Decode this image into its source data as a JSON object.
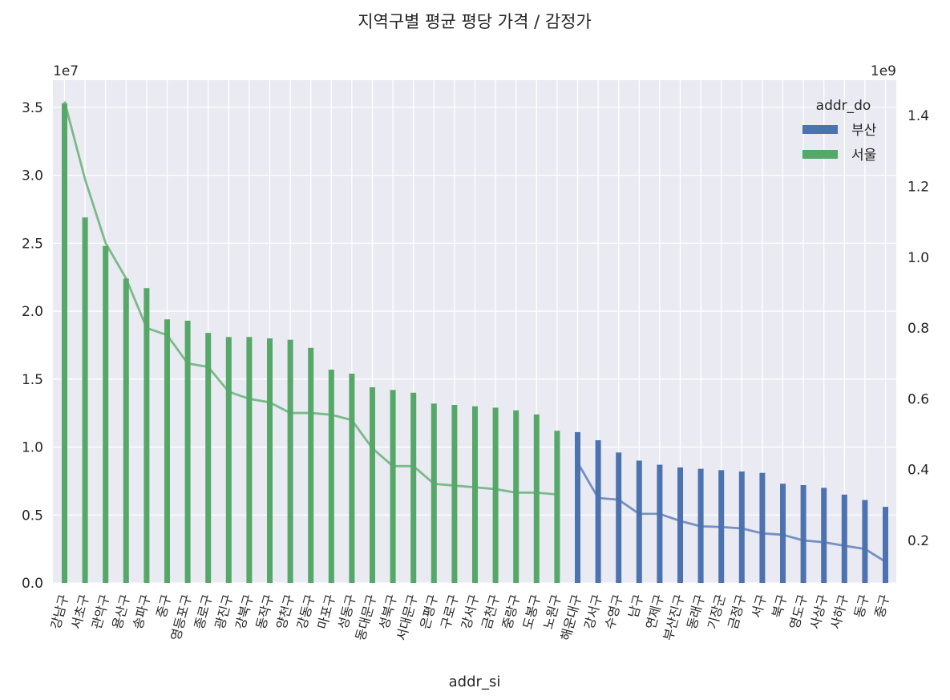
{
  "chart_data": {
    "type": "bar",
    "title": "지역구별 평균 평당 가격 / 감정가",
    "xlabel": "addr_si",
    "ylabel": "",
    "y_multiplier_label": "1e7",
    "y2_multiplier_label": "1e9",
    "ylim": [
      0,
      3.7
    ],
    "yticks": [
      "0.0",
      "0.5",
      "1.0",
      "1.5",
      "2.0",
      "2.5",
      "3.0",
      "3.5"
    ],
    "y2lim": [
      0.08,
      1.5
    ],
    "y2ticks": [
      "0.2",
      "0.4",
      "0.6",
      "0.8",
      "1.0",
      "1.2",
      "1.4"
    ],
    "grid": true,
    "legend": {
      "title": "addr_do",
      "placement": "top-right"
    },
    "categories": [
      "강남구",
      "서초구",
      "관악구",
      "용산구",
      "송파구",
      "중구",
      "영등포구",
      "종로구",
      "광진구",
      "강북구",
      "동작구",
      "양천구",
      "강동구",
      "마포구",
      "성동구",
      "동대문구",
      "성북구",
      "서대문구",
      "은평구",
      "구로구",
      "강서구",
      "금천구",
      "중랑구",
      "도봉구",
      "노원구",
      "해운대구",
      "강서구b",
      "수영구",
      "남구",
      "연제구",
      "부산진구",
      "동래구",
      "기장군",
      "금정구",
      "서구",
      "북구",
      "영도구",
      "사상구",
      "사하구",
      "동구",
      "중구b"
    ],
    "series": [
      {
        "name": "서울",
        "color": "#55a868",
        "kind": "bar",
        "values": [
          3.53,
          2.69,
          2.48,
          2.24,
          2.17,
          1.94,
          1.93,
          1.84,
          1.81,
          1.81,
          1.8,
          1.79,
          1.73,
          1.57,
          1.54,
          1.44,
          1.42,
          1.4,
          1.32,
          1.31,
          1.3,
          1.29,
          1.27,
          1.24,
          1.12,
          null,
          null,
          null,
          null,
          null,
          null,
          null,
          null,
          null,
          null,
          null,
          null,
          null,
          null,
          null,
          null
        ]
      },
      {
        "name": "부산",
        "color": "#4c72b0",
        "kind": "bar",
        "values": [
          null,
          null,
          null,
          null,
          null,
          null,
          null,
          null,
          null,
          null,
          null,
          null,
          null,
          null,
          null,
          null,
          null,
          null,
          null,
          null,
          null,
          null,
          null,
          null,
          null,
          1.11,
          1.05,
          0.96,
          0.9,
          0.87,
          0.85,
          0.84,
          0.83,
          0.82,
          0.81,
          0.73,
          0.72,
          0.7,
          0.65,
          0.61,
          0.56
        ]
      },
      {
        "name": "",
        "color": "#55a868",
        "kind": "line",
        "axis": "right",
        "values": [
          1.44,
          1.22,
          1.04,
          0.94,
          0.8,
          0.78,
          0.7,
          0.69,
          0.62,
          0.6,
          0.59,
          0.56,
          0.56,
          0.555,
          0.54,
          0.46,
          0.41,
          0.41,
          0.36,
          0.355,
          0.35,
          0.345,
          0.335,
          0.335,
          0.33,
          null,
          null,
          null,
          null,
          null,
          null,
          null,
          null,
          null,
          null,
          null,
          null,
          null,
          null,
          null,
          null
        ]
      },
      {
        "name": "",
        "color": "#4c72b0",
        "kind": "line",
        "axis": "right",
        "values": [
          null,
          null,
          null,
          null,
          null,
          null,
          null,
          null,
          null,
          null,
          null,
          null,
          null,
          null,
          null,
          null,
          null,
          null,
          null,
          null,
          null,
          null,
          null,
          null,
          null,
          0.42,
          0.32,
          0.315,
          0.275,
          0.275,
          0.255,
          0.24,
          0.238,
          0.234,
          0.22,
          0.216,
          0.2,
          0.195,
          0.185,
          0.176,
          0.14
        ]
      }
    ]
  }
}
